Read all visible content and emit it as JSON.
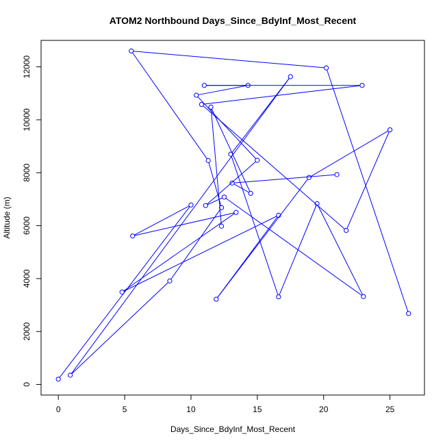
{
  "chart_data": {
    "type": "line",
    "title": "ATOM2 Northbound Days_Since_BdyInf_Most_Recent",
    "xlabel": "Days_Since_BdyInf_Most_Recent",
    "ylabel": "Altitude (m)",
    "xlim": [
      -1.3,
      27.6
    ],
    "ylim": [
      -400,
      13000
    ],
    "xticks": [
      0,
      5,
      10,
      15,
      20,
      25
    ],
    "yticks": [
      0,
      2000,
      4000,
      6000,
      8000,
      10000,
      12000
    ],
    "grid": false,
    "series": [
      {
        "color": "#0000ff",
        "markers": "open-circle",
        "x": [
          0.0,
          10.0,
          5.6,
          13.4,
          4.8,
          16.6,
          11.9,
          18.9,
          25.0,
          21.7,
          10.8,
          22.9,
          11.0,
          14.3,
          10.4,
          15.0,
          11.1,
          12.5,
          23.0,
          19.5,
          16.6,
          13.0,
          17.5,
          0.9,
          8.4,
          12.3,
          11.3,
          5.5,
          20.2,
          26.4
        ],
        "y": [
          200,
          6780,
          5610,
          6500,
          3490,
          6390,
          3220,
          7820,
          9620,
          5820,
          10580,
          11300,
          11300,
          11300,
          10930,
          8470,
          6760,
          7080,
          3320,
          6830,
          3310,
          8700,
          11630,
          350,
          3910,
          6680,
          8460,
          12600,
          11960,
          2680
        ]
      },
      {
        "color": "#0000ff",
        "markers": "open-circle",
        "x": [
          12.3,
          11.5,
          14.5,
          13.1,
          21.0
        ],
        "y": [
          5980,
          10480,
          7220,
          7610,
          7930
        ]
      }
    ]
  }
}
